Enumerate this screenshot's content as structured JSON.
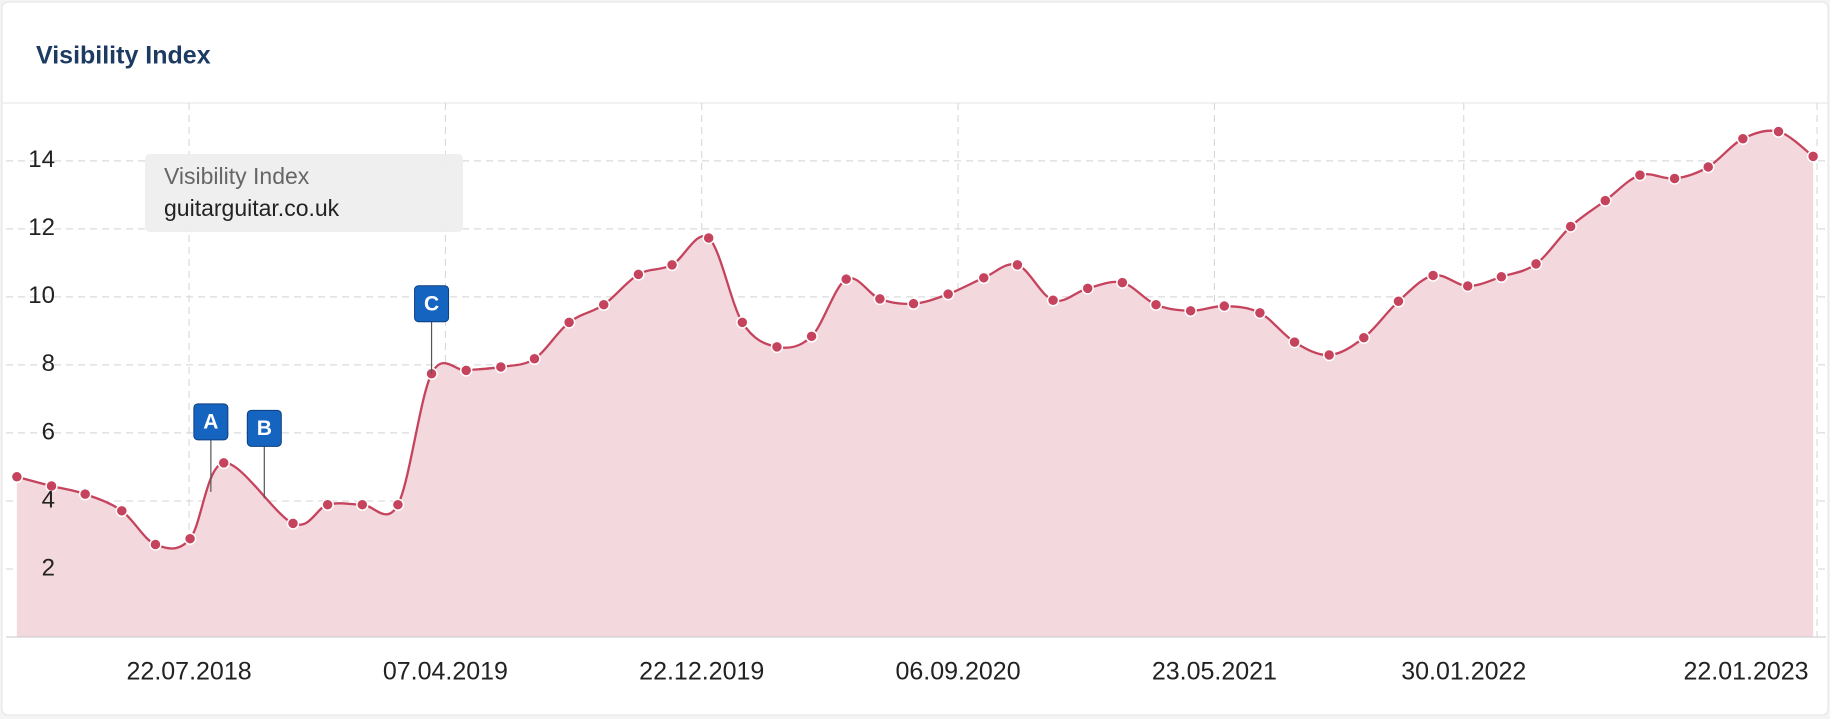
{
  "chart_data": {
    "type": "line",
    "title": "Visibility Index",
    "legend_title": "Visibility Index",
    "x": [
      "29.01.2018",
      "05.03.2018",
      "08.04.2018",
      "15.05.2018",
      "18.06.2018",
      "23.07.2018",
      "26.08.2018",
      "04.11.2018",
      "09.12.2018",
      "13.01.2019",
      "18.02.2019",
      "24.03.2019",
      "28.04.2019",
      "02.06.2019",
      "06.07.2019",
      "10.08.2019",
      "14.09.2019",
      "19.10.2019",
      "22.11.2019",
      "29.12.2019",
      "01.02.2020",
      "07.03.2020",
      "11.04.2020",
      "16.05.2020",
      "19.06.2020",
      "23.07.2020",
      "27.08.2020",
      "02.10.2020",
      "05.11.2020",
      "11.12.2020",
      "15.01.2021",
      "19.02.2021",
      "25.03.2021",
      "29.04.2021",
      "02.06.2021",
      "08.07.2021",
      "12.08.2021",
      "16.09.2021",
      "21.10.2021",
      "25.11.2021",
      "30.12.2021",
      "03.02.2022",
      "09.03.2022",
      "13.04.2022",
      "18.05.2022",
      "22.06.2022",
      "27.07.2022",
      "31.08.2022",
      "04.10.2022",
      "08.11.2022",
      "14.12.2022",
      "18.01.2023"
    ],
    "series": [
      {
        "name": "guitarguitar.co.uk",
        "color": "#c5435d",
        "fill": "#f3d8de",
        "values": [
          4.71,
          4.44,
          4.2,
          3.71,
          2.72,
          2.89,
          5.12,
          3.34,
          3.89,
          3.89,
          3.89,
          7.74,
          7.84,
          7.94,
          8.18,
          9.25,
          9.77,
          10.66,
          10.94,
          11.73,
          9.25,
          8.53,
          8.84,
          10.52,
          9.94,
          9.8,
          10.08,
          10.56,
          10.94,
          9.9,
          10.25,
          10.42,
          9.77,
          9.59,
          9.73,
          9.53,
          8.67,
          8.29,
          8.8,
          9.87,
          10.63,
          10.32,
          10.59,
          10.97,
          12.07,
          12.83,
          13.58,
          13.48,
          13.82,
          14.65,
          14.86,
          14.13
        ]
      }
    ],
    "annotations": [
      {
        "label": "A",
        "x": "13.08.2018"
      },
      {
        "label": "B",
        "x": "06.10.2018"
      },
      {
        "label": "C",
        "x": "24.03.2019"
      }
    ],
    "annotation_color": "#1565c0",
    "xlim": [
      "18.01.2018",
      "31.01.2023"
    ],
    "xticks": [
      "22.07.2018",
      "07.04.2019",
      "22.12.2019",
      "06.09.2020",
      "23.05.2021",
      "30.01.2022",
      "22.01.2023"
    ],
    "ylim": [
      0,
      15.7
    ],
    "yticks": [
      2,
      4,
      6,
      8,
      10,
      12,
      14
    ],
    "grid": true,
    "legend": "top-left"
  }
}
